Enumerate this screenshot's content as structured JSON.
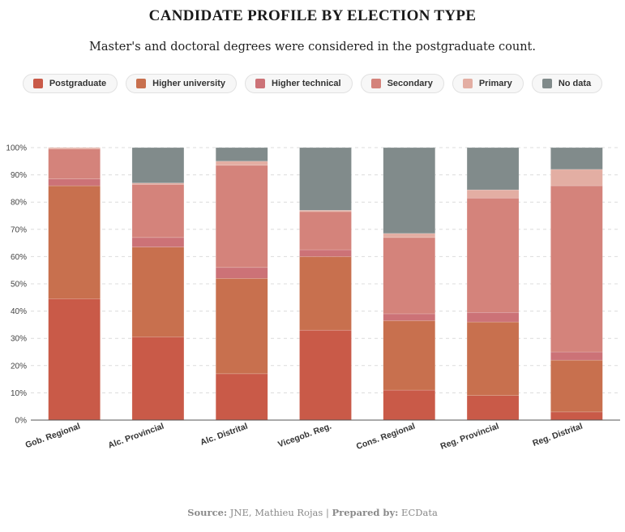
{
  "title": "CANDIDATE PROFILE BY ELECTION TYPE",
  "subtitle": "Master's and doctoral degrees were considered in the postgraduate count.",
  "legend": [
    {
      "label": "Postgraduate",
      "color": "#c95a48"
    },
    {
      "label": "Higher university",
      "color": "#c8704e"
    },
    {
      "label": "Higher technical",
      "color": "#cc7277"
    },
    {
      "label": "Secondary",
      "color": "#d4837b"
    },
    {
      "label": "Primary",
      "color": "#e3aea3"
    },
    {
      "label": "No data",
      "color": "#818b8b"
    }
  ],
  "source": {
    "source_label": "Source:",
    "source_text": " JNE, Mathieu Rojas | ",
    "prepared_label": "Prepared by:",
    "prepared_text": " ECData"
  },
  "chart_data": {
    "type": "bar",
    "stacked": true,
    "categories": [
      "Gob. Regional",
      "Alc. Provincial",
      "Alc. Distrital",
      "Vicegob. Reg.",
      "Cons. Regional",
      "Reg. Provincial",
      "Reg. Distrital"
    ],
    "series": [
      {
        "name": "Postgraduate",
        "color": "#c95a48",
        "values": [
          44.5,
          30.5,
          17,
          33,
          11,
          9,
          3
        ]
      },
      {
        "name": "Higher university",
        "color": "#c8704e",
        "values": [
          41.5,
          33,
          35,
          27,
          25.5,
          27,
          19
        ]
      },
      {
        "name": "Higher technical",
        "color": "#cc7277",
        "values": [
          2.5,
          3.5,
          4,
          2.5,
          2.5,
          3.5,
          3
        ]
      },
      {
        "name": "Secondary",
        "color": "#d4837b",
        "values": [
          11,
          19.5,
          37.5,
          14,
          28,
          42,
          61
        ]
      },
      {
        "name": "Primary",
        "color": "#e3aea3",
        "values": [
          0.5,
          0.5,
          1.5,
          0.5,
          1.5,
          3,
          6
        ]
      },
      {
        "name": "No data",
        "color": "#818b8b",
        "values": [
          0,
          13,
          5,
          23,
          31.5,
          15.5,
          8
        ]
      }
    ],
    "ylim": [
      0,
      100
    ],
    "yticks": [
      "0%",
      "10%",
      "20%",
      "30%",
      "40%",
      "50%",
      "60%",
      "70%",
      "80%",
      "90%",
      "100%"
    ],
    "grid": true,
    "legend_position": "top"
  }
}
